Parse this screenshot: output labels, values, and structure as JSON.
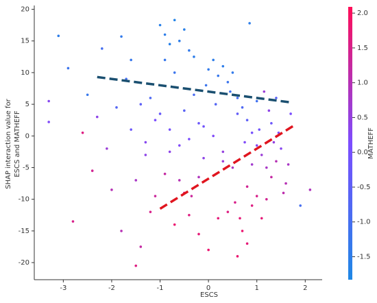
{
  "chart_data": {
    "type": "scatter",
    "xlabel": "ESCS",
    "ylabel": [
      "SHAP interaction value for",
      "ESCS and MATHEFF"
    ],
    "colorbar_label": "MATHEFF",
    "xlim": [
      -3.6,
      2.35
    ],
    "xticks": [
      -3,
      -2,
      -1,
      0,
      1,
      2
    ],
    "ylim": [
      -22.7,
      20.6
    ],
    "yticks": [
      -20,
      -15,
      -10,
      -5,
      0,
      5,
      10,
      15,
      20
    ],
    "clim": [
      -1.83,
      2.09
    ],
    "cticks": [
      -1.5,
      {
        "value": -1.0,
        "label": "-1.0"
      },
      -0.5,
      {
        "value": 0.0,
        "label": "0.0"
      },
      0.5,
      {
        "value": 1.0,
        "label": "1.0"
      },
      1.5,
      {
        "value": 2.0,
        "label": "2.0"
      }
    ],
    "colormap": [
      "#1e88e5",
      "#7c4dff",
      "#ff0d57"
    ],
    "points": {
      "x": [
        -3.3,
        -3.1,
        -2.9,
        -3.3,
        -2.8,
        -2.6,
        -2.5,
        -2.4,
        -2.2,
        -2.0,
        -1.8,
        -1.6,
        -1.5,
        -1.4,
        -1.3,
        -1.2,
        -1.1,
        -1.0,
        -0.9,
        -0.8,
        -0.7,
        -0.6,
        -0.5,
        -0.4,
        -0.3,
        -0.9,
        -0.7,
        -1.7,
        -1.4,
        -1.0,
        -0.8,
        -0.6,
        -0.5,
        -0.3,
        -0.2,
        -0.1,
        0.0,
        0.1,
        0.2,
        0.3,
        0.4,
        0.5,
        0.6,
        0.7,
        0.8,
        0.9,
        1.0,
        1.1,
        1.2,
        1.3,
        1.4,
        1.5,
        1.6,
        1.7,
        1.9,
        2.1,
        0.8,
        0.9,
        0.7,
        0.8,
        0.6,
        0.4,
        0.2,
        0.0,
        -0.2,
        -0.4,
        -0.5,
        -0.7,
        -0.9,
        -1.1,
        -0.6,
        1.0,
        1.1,
        1.2,
        1.3,
        1.4,
        0.5,
        0.3,
        0.1,
        -0.1,
        -0.4,
        -1.3,
        -1.6,
        -1.9,
        -2.1,
        -2.3,
        0.6,
        0.9,
        1.0,
        1.15,
        1.25,
        1.45,
        1.55,
        0.85,
        0.3,
        -0.2,
        -0.8,
        -1.5,
        -1.8,
        0.75,
        1.05,
        0.45,
        0.15,
        -0.05,
        1.35,
        1.65,
        -1.2,
        0.55,
        0.65,
        -0.35
      ],
      "y": [
        5.5,
        15.8,
        10.7,
        2.2,
        -13.5,
        0.5,
        6.5,
        -5.5,
        13.8,
        -8.5,
        15.7,
        12.0,
        -20.5,
        -17.5,
        -3.0,
        6.0,
        2.5,
        17.5,
        16.0,
        14.5,
        18.3,
        15.0,
        16.8,
        13.5,
        12.5,
        12.0,
        10.0,
        9.0,
        5.0,
        3.5,
        1.0,
        -1.5,
        4.0,
        6.5,
        2.0,
        -3.5,
        10.5,
        12.0,
        9.5,
        11.0,
        8.5,
        10.0,
        6.0,
        4.5,
        2.5,
        0.5,
        -1.5,
        -3.0,
        -5.0,
        2.0,
        6.0,
        -2.0,
        -7.5,
        3.5,
        -11.0,
        -8.5,
        -8.0,
        -11.0,
        -15.0,
        -17.0,
        -19.0,
        -12.0,
        -13.0,
        -18.0,
        -15.5,
        -12.5,
        -9.0,
        -14.0,
        -6.0,
        -9.5,
        -7.0,
        -9.5,
        -13.0,
        -10.0,
        -6.5,
        -4.0,
        -5.0,
        -2.5,
        0.0,
        1.5,
        -0.5,
        -1.0,
        1.0,
        4.5,
        -2.0,
        3.0,
        3.5,
        -4.5,
        5.5,
        7.0,
        4.0,
        0.5,
        -9.0,
        17.8,
        -4.0,
        -6.5,
        -2.5,
        -7.0,
        -15.0,
        -1.0,
        1.0,
        7.0,
        5.0,
        8.0,
        -1.0,
        -4.5,
        -12.0,
        -10.5,
        -13.0,
        -9.5
      ],
      "c": [
        0.3,
        -1.5,
        -1.2,
        0.2,
        1.5,
        1.6,
        -1.3,
        1.4,
        -1.0,
        1.0,
        -1.4,
        -1.3,
        1.6,
        1.2,
        0.4,
        -0.8,
        0.1,
        -1.6,
        -1.5,
        -1.6,
        -1.7,
        -1.5,
        -1.6,
        -1.4,
        -1.5,
        -1.3,
        -1.2,
        -1.0,
        -0.5,
        -0.3,
        0.0,
        0.2,
        -0.6,
        -0.9,
        -0.2,
        0.4,
        -1.4,
        -1.5,
        -1.3,
        -1.5,
        -1.2,
        -1.4,
        -1.0,
        -0.8,
        -0.5,
        0.0,
        0.3,
        0.6,
        0.8,
        -0.2,
        -0.6,
        0.3,
        1.0,
        0.1,
        -1.0,
        0.9,
        1.4,
        1.6,
        1.8,
        1.7,
        1.8,
        1.6,
        1.7,
        1.8,
        1.7,
        1.6,
        1.5,
        1.8,
        1.2,
        1.3,
        1.0,
        1.5,
        1.7,
        1.4,
        1.2,
        1.0,
        0.8,
        0.5,
        0.2,
        -0.1,
        0.1,
        0.3,
        -0.2,
        -0.7,
        0.6,
        0.4,
        -0.4,
        0.7,
        -1.1,
        0.6,
        0.4,
        0.2,
        1.1,
        -1.5,
        0.6,
        0.9,
        0.4,
        0.8,
        1.0,
        0.2,
        -0.1,
        -1.1,
        -0.7,
        -1.2,
        0.5,
        0.8,
        1.5,
        1.5,
        1.7,
        1.3
      ]
    },
    "trend_lines": [
      {
        "color": "#1a4f70",
        "x": [
          -2.3,
          1.7
        ],
        "y": [
          9.3,
          5.3
        ]
      },
      {
        "color": "#e0151f",
        "x": [
          -1.0,
          1.8
        ],
        "y": [
          -11.5,
          1.8
        ]
      }
    ]
  }
}
